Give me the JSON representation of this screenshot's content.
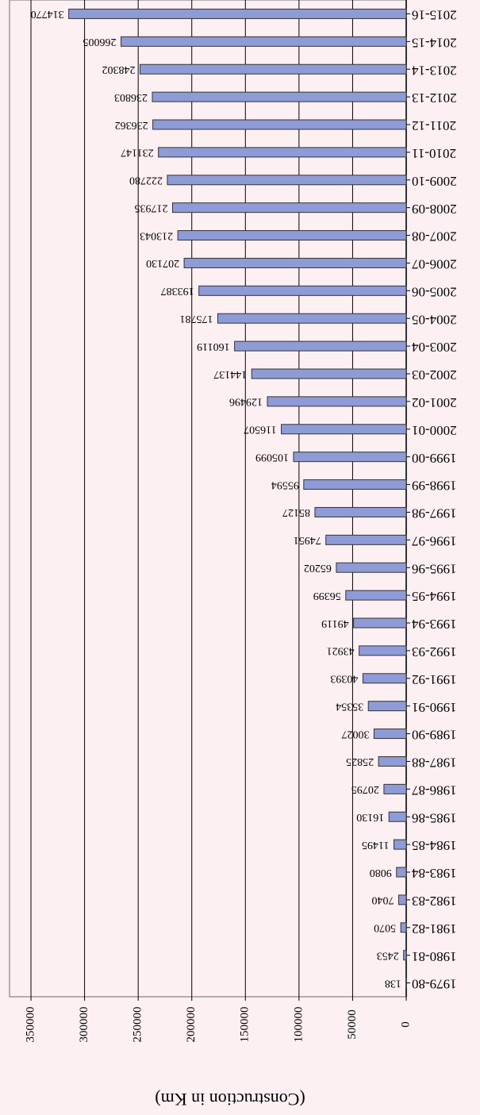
{
  "chart_data": {
    "type": "bar",
    "orientation": "horizontal",
    "x_label": "(Construction in Km)",
    "categories": [
      "1979-80",
      "1980-81",
      "1981-82",
      "1982-83",
      "1983-84",
      "1984-85",
      "1985-86",
      "1986-87",
      "1987-88",
      "1989-90",
      "1990-91",
      "1991-92",
      "1992-93",
      "1993-94",
      "1994-95",
      "1995-96",
      "1996-97",
      "1997-98",
      "1998-99",
      "1999-00",
      "2000-01",
      "2001-02",
      "2002-03",
      "2003-04",
      "2004-05",
      "2005-06",
      "2006-07",
      "2007-08",
      "2008-09",
      "2009-10",
      "2010-11",
      "2011-12",
      "2012-13",
      "2013-14",
      "2014-15",
      "2015-16"
    ],
    "values": [
      138,
      2453,
      5070,
      7040,
      9080,
      11495,
      16130,
      20795,
      25825,
      30027,
      35354,
      40393,
      43921,
      49119,
      56399,
      65202,
      74951,
      85127,
      95594,
      105099,
      116507,
      129496,
      144137,
      160119,
      175781,
      193387,
      207130,
      213043,
      217935,
      222780,
      231147,
      236362,
      236803,
      248302,
      266005,
      314770
    ],
    "color": "#8e9bd6",
    "xlim": [
      0,
      370000
    ],
    "xticks": [
      0,
      50000,
      100000,
      150000,
      200000,
      250000,
      300000,
      350000
    ],
    "grid": true
  }
}
